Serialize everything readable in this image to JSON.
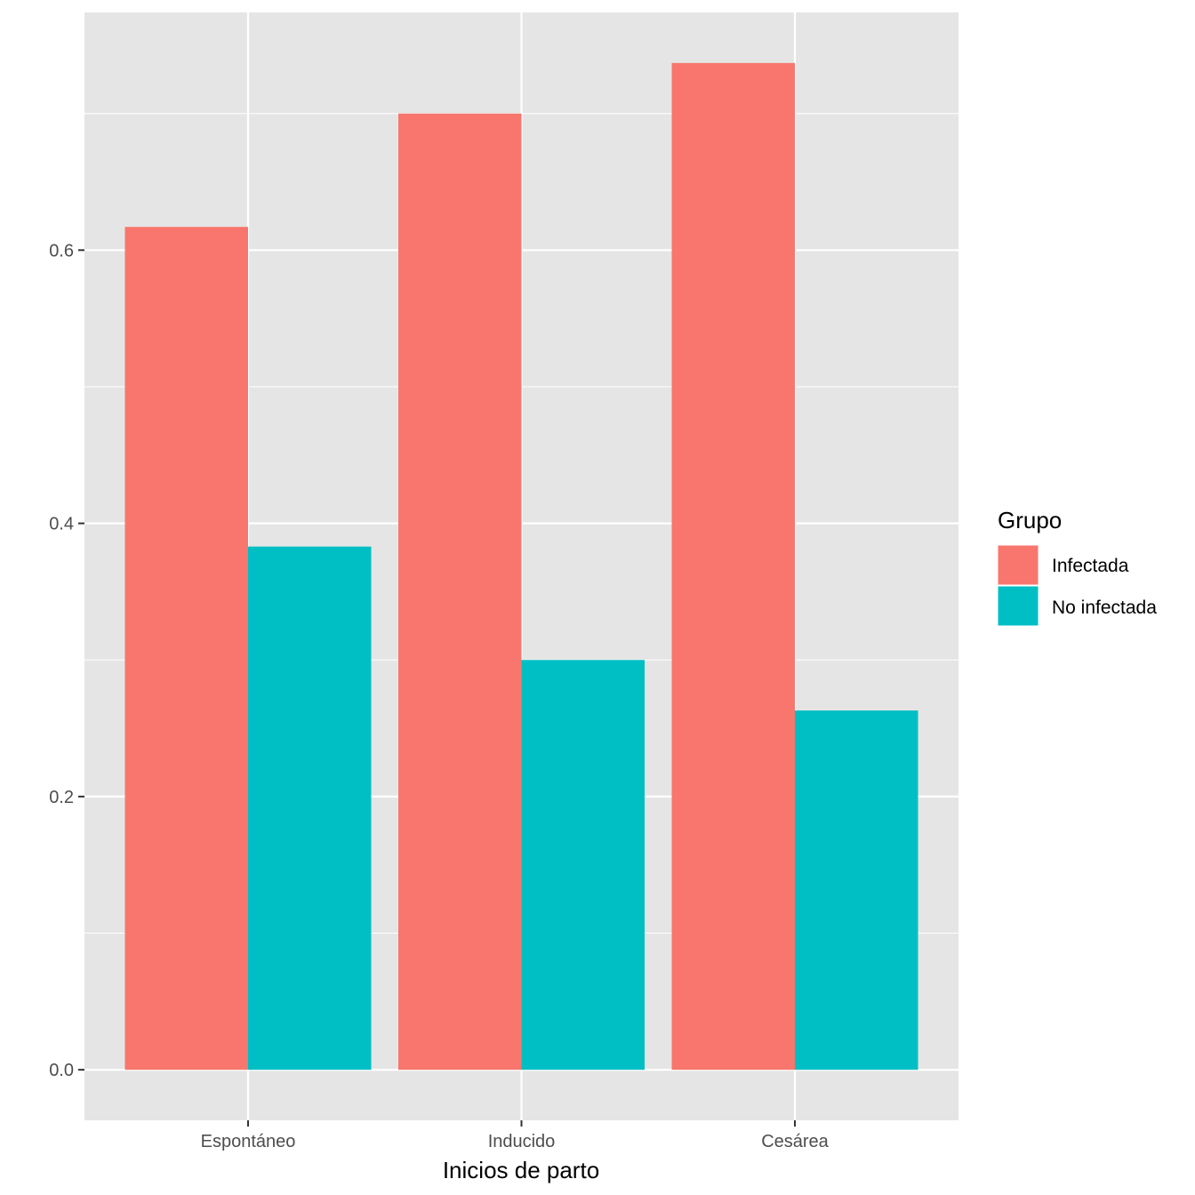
{
  "chart_data": {
    "type": "bar",
    "xlabel": "Inicios de parto",
    "ylabel": "",
    "categories": [
      "Espontáneo",
      "Inducido",
      "Cesárea"
    ],
    "series": [
      {
        "name": "Infectada",
        "values": [
          0.617,
          0.7,
          0.737
        ],
        "color": "#F8766D"
      },
      {
        "name": "No infectada",
        "values": [
          0.383,
          0.3,
          0.263
        ],
        "color": "#00BFC4"
      }
    ],
    "ylim": [
      -0.037,
      0.774
    ],
    "yticks": [
      0.0,
      0.2,
      0.4,
      0.6
    ],
    "ytick_labels": [
      "0.0",
      "0.2",
      "0.4",
      "0.6"
    ],
    "grid": true,
    "legend": {
      "title": "Grupo",
      "position": "right"
    },
    "panel_color": "#E5E5E5"
  }
}
